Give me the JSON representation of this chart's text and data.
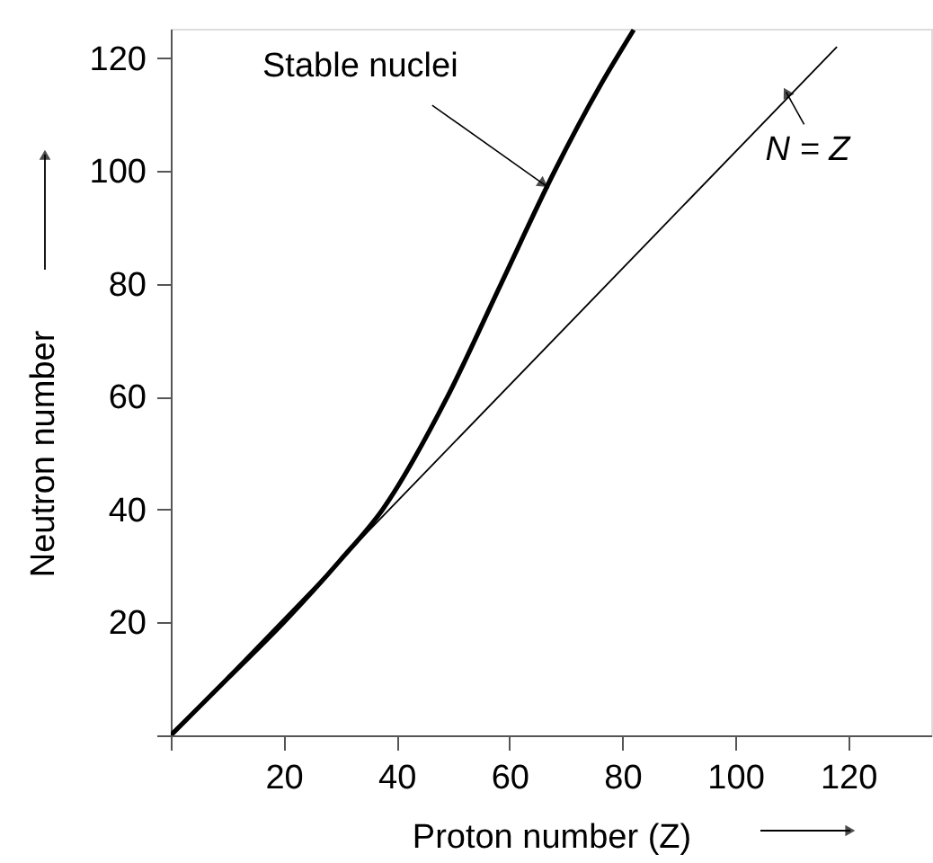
{
  "chart_data": {
    "type": "line",
    "xlabel": "Proton number (Z)",
    "ylabel": "Neutron number",
    "series": [
      {
        "color": "#000000",
        "x": [
          0,
          10,
          20,
          30,
          37.5,
          49,
          58.5,
          68,
          76,
          82
        ],
        "values": [
          0,
          10,
          20,
          31,
          40,
          60,
          80,
          100,
          115,
          125
        ]
      },
      {
        "color": "#000000",
        "x": [
          0,
          118
        ],
        "values": [
          0,
          122
        ]
      }
    ],
    "xlim": [
      0,
      134.7
    ],
    "ylim": [
      0,
      125.2
    ],
    "xticks": [
      {
        "value": 0,
        "label": null
      },
      20,
      40,
      60,
      80,
      100,
      120
    ],
    "yticks": [
      {
        "value": 0,
        "label": null
      },
      20,
      40,
      60,
      80,
      100,
      120
    ],
    "annotations": [
      {
        "text": "Stable nuclei",
        "x": 67,
        "y": 97
      },
      {
        "text": "N = Z",
        "x": 109,
        "y": 114
      }
    ],
    "grid": false,
    "marker": "none",
    "line_style": "solid"
  }
}
